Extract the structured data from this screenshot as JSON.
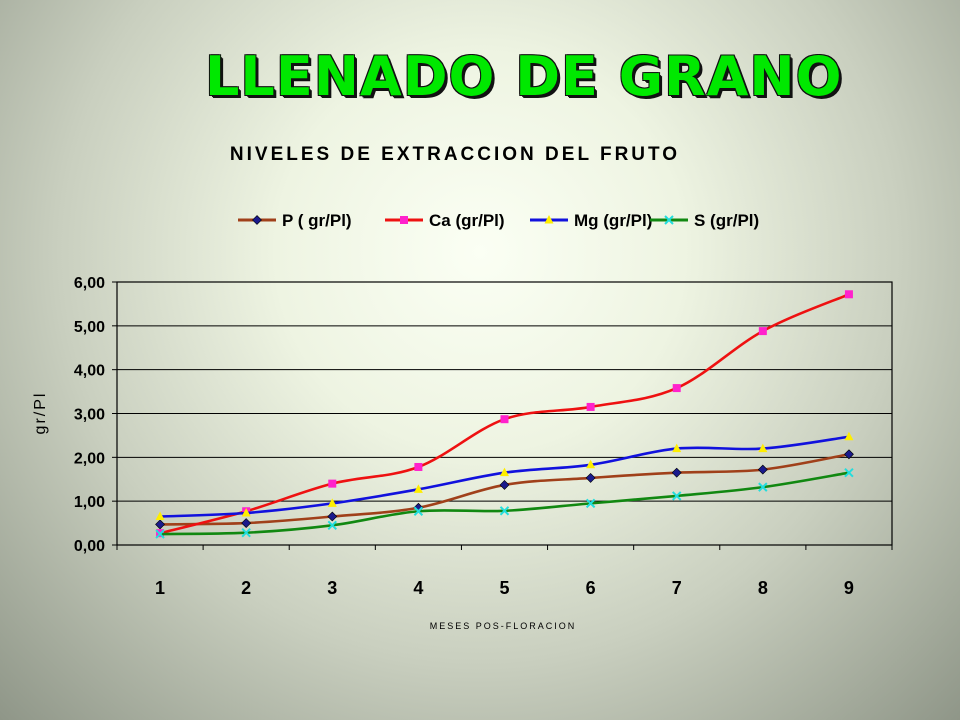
{
  "slide": {
    "title": "LLENADO DE GRANO"
  },
  "chart_data": {
    "type": "line",
    "title": "NIVELES DE EXTRACCION DEL FRUTO",
    "xlabel": "MESES POS-FLORACION",
    "ylabel": "gr/Pl",
    "categories": [
      "1",
      "2",
      "3",
      "4",
      "5",
      "6",
      "7",
      "8",
      "9"
    ],
    "ylim": [
      0,
      6
    ],
    "yticks": [
      "0,00",
      "1,00",
      "2,00",
      "3,00",
      "4,00",
      "5,00",
      "6,00"
    ],
    "grid": true,
    "legend_position": "top",
    "series": [
      {
        "name": "P ( gr/Pl)",
        "line_color": "#a0401a",
        "marker_color": "#1a1a8c",
        "marker": "diamond",
        "values": [
          0.47,
          0.5,
          0.65,
          0.85,
          1.37,
          1.53,
          1.65,
          1.72,
          2.07
        ]
      },
      {
        "name": "Ca (gr/Pl)",
        "line_color": "#ee1111",
        "marker_color": "#ff22cc",
        "marker": "square",
        "values": [
          0.27,
          0.77,
          1.4,
          1.78,
          2.87,
          3.15,
          3.58,
          4.88,
          5.72
        ]
      },
      {
        "name": "Mg (gr/Pl)",
        "line_color": "#1111dd",
        "marker_color": "#ffee00",
        "marker": "triangle",
        "values": [
          0.65,
          0.73,
          0.95,
          1.27,
          1.65,
          1.83,
          2.2,
          2.2,
          2.47
        ]
      },
      {
        "name": "S (gr/Pl)",
        "line_color": "#118811",
        "marker_color": "#22dddd",
        "marker": "x",
        "values": [
          0.25,
          0.28,
          0.45,
          0.77,
          0.78,
          0.95,
          1.12,
          1.32,
          1.65
        ]
      }
    ]
  }
}
